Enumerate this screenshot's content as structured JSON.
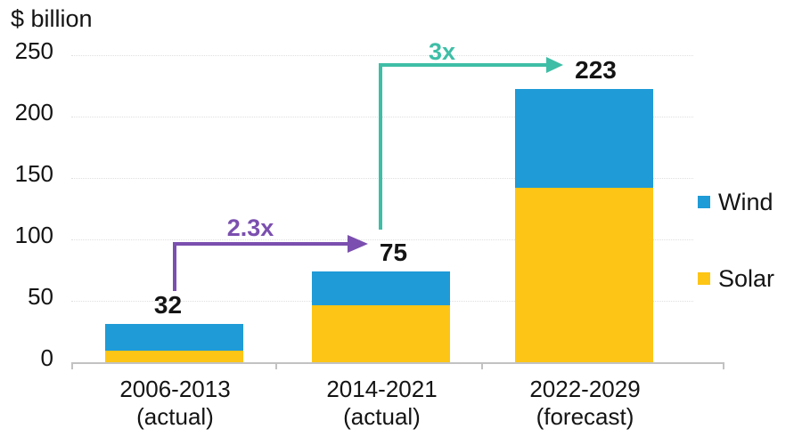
{
  "chart_data": {
    "type": "bar",
    "stacked": true,
    "y_axis_title": "$ billion",
    "ylim": [
      0,
      250
    ],
    "y_ticks": [
      0,
      50,
      100,
      150,
      200,
      250
    ],
    "grid": "horizontal-dotted",
    "categories": [
      {
        "line1": "2006-2013",
        "line2": "(actual)"
      },
      {
        "line1": "2014-2021",
        "line2": "(actual)"
      },
      {
        "line1": "2022-2029",
        "line2": "(forecast)"
      }
    ],
    "series": [
      {
        "name": "Solar",
        "color": "#FDC515",
        "values": [
          10,
          47,
          143
        ]
      },
      {
        "name": "Wind",
        "color": "#1F9BD7",
        "values": [
          22,
          28,
          80
        ]
      }
    ],
    "totals": [
      32,
      75,
      223
    ],
    "legend_position": "right",
    "legend": [
      {
        "label": "Wind",
        "color": "#1F9BD7"
      },
      {
        "label": "Solar",
        "color": "#FDC515"
      }
    ],
    "annotations": [
      {
        "label": "2.3x",
        "color": "#7B4FAF",
        "from": "2006-2013",
        "to": "2014-2021"
      },
      {
        "label": "3x",
        "color": "#3EBEA6",
        "from": "2014-2021",
        "to": "2022-2029"
      }
    ]
  }
}
